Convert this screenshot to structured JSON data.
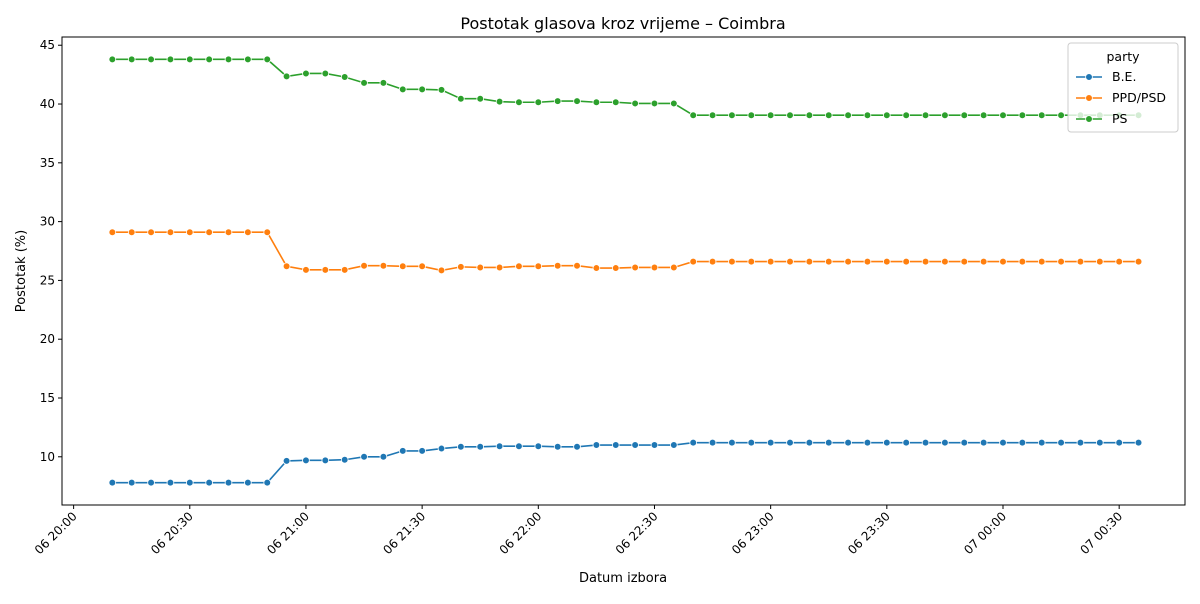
{
  "chart_data": {
    "type": "line",
    "title": "Postotak glasova kroz vrijeme – Coimbra",
    "xlabel": "Datum izbora",
    "ylabel": "Postotak (%)",
    "x_axis": {
      "kind": "datetime",
      "range": [
        "2024-06-06T19:57",
        "2024-06-07T00:47"
      ],
      "tick_values": [
        "2024-06-06T20:00",
        "2024-06-06T20:30",
        "2024-06-06T21:00",
        "2024-06-06T21:30",
        "2024-06-06T22:00",
        "2024-06-06T22:30",
        "2024-06-06T23:00",
        "2024-06-06T23:30",
        "2024-06-07T00:00",
        "2024-06-07T00:30"
      ],
      "tick_labels": [
        "06 20:00",
        "06 20:30",
        "06 21:00",
        "06 21:30",
        "06 22:00",
        "06 22:30",
        "06 23:00",
        "06 23:30",
        "07 00:00",
        "07 00:30"
      ]
    },
    "y_axis": {
      "range": [
        5.9,
        45.7
      ],
      "tick_values": [
        10,
        15,
        20,
        25,
        30,
        35,
        40,
        45
      ],
      "tick_labels": [
        "10",
        "15",
        "20",
        "25",
        "30",
        "35",
        "40",
        "45"
      ]
    },
    "grid": false,
    "legend": {
      "title": "party",
      "placement": "top-right"
    },
    "x": [
      "2024-06-06T20:10",
      "2024-06-06T20:15",
      "2024-06-06T20:20",
      "2024-06-06T20:25",
      "2024-06-06T20:30",
      "2024-06-06T20:35",
      "2024-06-06T20:40",
      "2024-06-06T20:45",
      "2024-06-06T20:50",
      "2024-06-06T20:55",
      "2024-06-06T21:00",
      "2024-06-06T21:05",
      "2024-06-06T21:10",
      "2024-06-06T21:15",
      "2024-06-06T21:20",
      "2024-06-06T21:25",
      "2024-06-06T21:30",
      "2024-06-06T21:35",
      "2024-06-06T21:40",
      "2024-06-06T21:45",
      "2024-06-06T21:50",
      "2024-06-06T21:55",
      "2024-06-06T22:00",
      "2024-06-06T22:05",
      "2024-06-06T22:10",
      "2024-06-06T22:15",
      "2024-06-06T22:20",
      "2024-06-06T22:25",
      "2024-06-06T22:30",
      "2024-06-06T22:35",
      "2024-06-06T22:40",
      "2024-06-06T22:45",
      "2024-06-06T22:50",
      "2024-06-06T22:55",
      "2024-06-06T23:00",
      "2024-06-06T23:05",
      "2024-06-06T23:10",
      "2024-06-06T23:15",
      "2024-06-06T23:20",
      "2024-06-06T23:25",
      "2024-06-06T23:30",
      "2024-06-06T23:35",
      "2024-06-06T23:40",
      "2024-06-06T23:45",
      "2024-06-06T23:50",
      "2024-06-06T23:55",
      "2024-06-07T00:00",
      "2024-06-07T00:05",
      "2024-06-07T00:10",
      "2024-06-07T00:15",
      "2024-06-07T00:20",
      "2024-06-07T00:25",
      "2024-06-07T00:30",
      "2024-06-07T00:35"
    ],
    "series": [
      {
        "name": "B.E.",
        "color": "#1f77b4",
        "values": [
          7.8,
          7.8,
          7.8,
          7.8,
          7.8,
          7.8,
          7.8,
          7.8,
          7.8,
          9.65,
          9.7,
          9.7,
          9.75,
          10.0,
          10.0,
          10.5,
          10.5,
          10.7,
          10.85,
          10.85,
          10.9,
          10.9,
          10.9,
          10.85,
          10.85,
          11.0,
          11.0,
          11.0,
          11.0,
          11.0,
          11.2,
          11.2,
          11.2,
          11.2,
          11.2,
          11.2,
          11.2,
          11.2,
          11.2,
          11.2,
          11.2,
          11.2,
          11.2,
          11.2,
          11.2,
          11.2,
          11.2,
          11.2,
          11.2,
          11.2,
          11.2,
          11.2,
          11.2,
          11.2
        ]
      },
      {
        "name": "PPD/PSD",
        "color": "#ff7f0e",
        "values": [
          29.1,
          29.1,
          29.1,
          29.1,
          29.1,
          29.1,
          29.1,
          29.1,
          29.1,
          26.2,
          25.9,
          25.9,
          25.9,
          26.25,
          26.25,
          26.2,
          26.2,
          25.85,
          26.15,
          26.1,
          26.1,
          26.2,
          26.2,
          26.25,
          26.25,
          26.05,
          26.05,
          26.1,
          26.1,
          26.1,
          26.6,
          26.6,
          26.6,
          26.6,
          26.6,
          26.6,
          26.6,
          26.6,
          26.6,
          26.6,
          26.6,
          26.6,
          26.6,
          26.6,
          26.6,
          26.6,
          26.6,
          26.6,
          26.6,
          26.6,
          26.6,
          26.6,
          26.6,
          26.6
        ]
      },
      {
        "name": "PS",
        "color": "#2ca02c",
        "values": [
          43.8,
          43.8,
          43.8,
          43.8,
          43.8,
          43.8,
          43.8,
          43.8,
          43.8,
          42.35,
          42.6,
          42.6,
          42.3,
          41.8,
          41.8,
          41.25,
          41.25,
          41.2,
          40.45,
          40.45,
          40.2,
          40.15,
          40.15,
          40.25,
          40.25,
          40.15,
          40.15,
          40.05,
          40.05,
          40.05,
          39.05,
          39.05,
          39.05,
          39.05,
          39.05,
          39.05,
          39.05,
          39.05,
          39.05,
          39.05,
          39.05,
          39.05,
          39.05,
          39.05,
          39.05,
          39.05,
          39.05,
          39.05,
          39.05,
          39.05,
          39.05,
          39.05,
          39.05,
          39.05
        ]
      }
    ]
  }
}
